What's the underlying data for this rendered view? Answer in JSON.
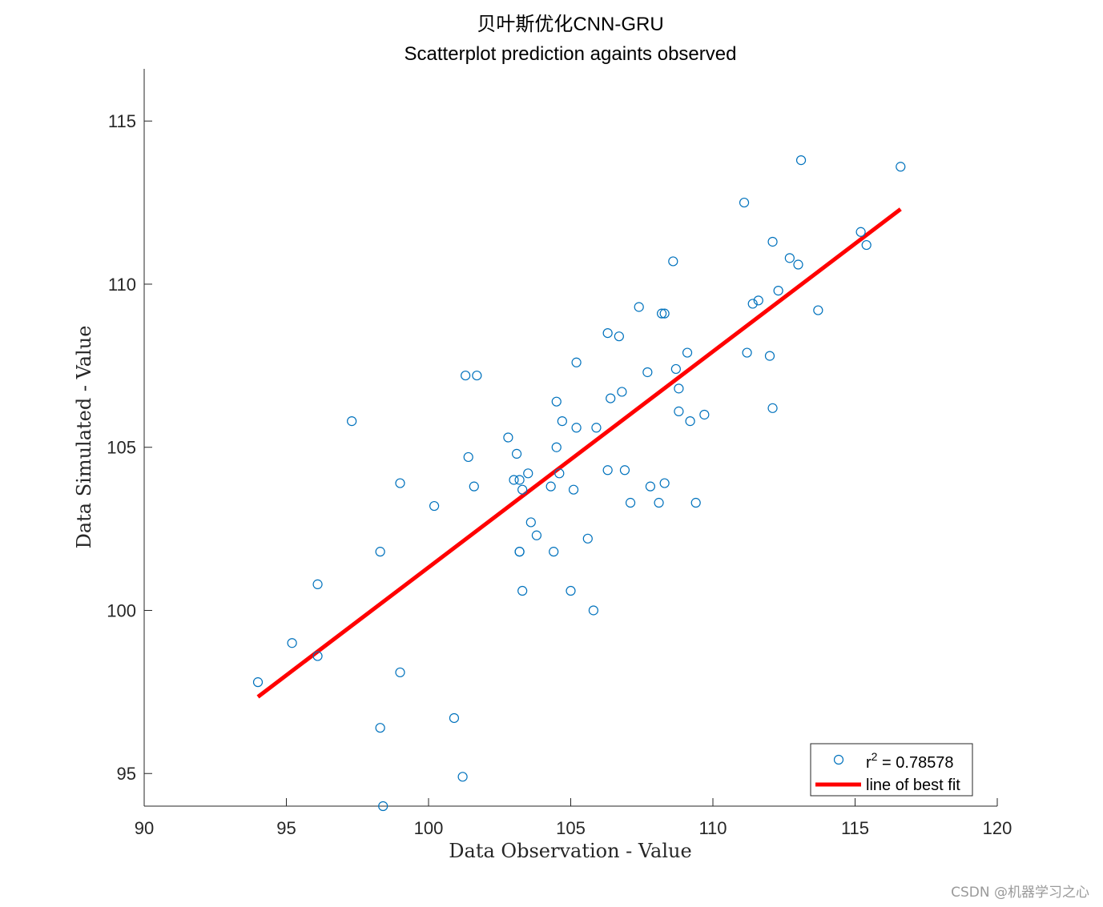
{
  "chart_data": {
    "type": "scatter",
    "title": "贝叶斯优化CNN-GRU",
    "subtitle": "Scatterplot prediction againts observed",
    "xlabel": "Data Observation - Value",
    "ylabel": "Data Simulated - Value",
    "xlim": [
      90,
      120
    ],
    "ylim": [
      94,
      116.6
    ],
    "xticks": [
      90,
      95,
      100,
      105,
      110,
      115,
      120
    ],
    "yticks": [
      95,
      100,
      105,
      110,
      115
    ],
    "grid": false,
    "legend_position": "bottom-right",
    "legend": {
      "scatter_label_prefix": "r",
      "scatter_label_sup": "2",
      "scatter_label_suffix": " = 0.78578",
      "fit_label": "line of best fit"
    },
    "series": [
      {
        "kind": "points",
        "color": "#0072BD",
        "x": [
          94.0,
          95.2,
          96.1,
          96.1,
          97.3,
          98.3,
          98.3,
          98.4,
          99.0,
          99.0,
          100.2,
          100.9,
          101.2,
          101.3,
          101.4,
          101.6,
          101.7,
          102.8,
          103.0,
          103.1,
          103.2,
          103.2,
          103.2,
          103.3,
          103.3,
          103.5,
          103.6,
          103.8,
          104.3,
          104.4,
          104.5,
          104.5,
          104.6,
          104.7,
          105.0,
          105.1,
          105.2,
          105.2,
          105.6,
          105.8,
          105.9,
          106.3,
          106.3,
          106.4,
          106.7,
          106.8,
          106.9,
          107.1,
          107.4,
          107.7,
          107.8,
          108.1,
          108.2,
          108.3,
          108.3,
          108.6,
          108.7,
          108.8,
          108.8,
          109.1,
          109.2,
          109.4,
          109.7,
          111.1,
          111.2,
          111.4,
          111.6,
          112.0,
          112.1,
          112.1,
          112.3,
          112.7,
          113.0,
          113.1,
          113.7,
          115.2,
          115.4,
          116.6
        ],
        "y": [
          97.8,
          99.0,
          98.6,
          100.8,
          105.8,
          101.8,
          96.4,
          94.0,
          103.9,
          98.1,
          103.2,
          96.7,
          94.9,
          107.2,
          104.7,
          103.8,
          107.2,
          105.3,
          104.0,
          104.8,
          104.0,
          101.8,
          101.8,
          100.6,
          103.7,
          104.2,
          102.7,
          102.3,
          103.8,
          101.8,
          106.4,
          105.0,
          104.2,
          105.8,
          100.6,
          103.7,
          105.6,
          107.6,
          102.2,
          100.0,
          105.6,
          108.5,
          104.3,
          106.5,
          108.4,
          106.7,
          104.3,
          103.3,
          109.3,
          107.3,
          103.8,
          103.3,
          109.1,
          103.9,
          109.1,
          110.7,
          107.4,
          106.8,
          106.1,
          107.9,
          105.8,
          103.3,
          106.0,
          112.5,
          107.9,
          109.4,
          109.5,
          107.8,
          106.2,
          111.3,
          109.8,
          110.8,
          110.6,
          113.8,
          109.2,
          111.6,
          111.2,
          113.6
        ]
      },
      {
        "kind": "line",
        "color": "#FF0000",
        "x": [
          94.0,
          116.6
        ],
        "y": [
          97.35,
          112.3
        ]
      }
    ]
  },
  "watermark": "CSDN @机器学习之心"
}
